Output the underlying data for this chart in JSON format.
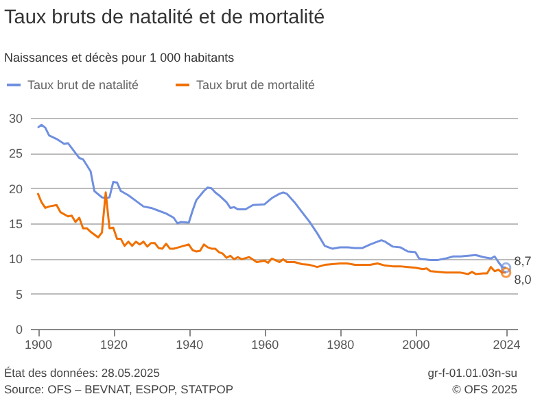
{
  "chart_data": {
    "type": "line",
    "title": "Taux bruts de natalité et de mortalité",
    "subtitle": "Naissances et décès pour 1 000 habitants",
    "xlim": [
      1898,
      2027
    ],
    "xticks": [
      1900,
      1920,
      1940,
      1960,
      1980,
      2000,
      2024
    ],
    "ylim": [
      0,
      30
    ],
    "yticks": [
      0,
      5,
      10,
      15,
      20,
      25,
      30
    ],
    "grid": "y",
    "legend": "top left",
    "line_style": "solid",
    "series": [
      {
        "name": "Taux brut de natalité",
        "color": "#6f8fdf",
        "x": [
          1900,
          1901,
          1902,
          1903,
          1905,
          1907,
          1908,
          1910,
          1911,
          1912,
          1914,
          1915,
          1917,
          1918,
          1919,
          1920,
          1921,
          1922,
          1924,
          1926,
          1928,
          1930,
          1932,
          1934,
          1936,
          1937,
          1938,
          1940,
          1941,
          1942,
          1944,
          1945,
          1946,
          1947,
          1948,
          1950,
          1951,
          1952,
          1953,
          1955,
          1957,
          1960,
          1962,
          1964,
          1965,
          1966,
          1968,
          1970,
          1972,
          1974,
          1976,
          1978,
          1980,
          1982,
          1984,
          1986,
          1988,
          1990,
          1991,
          1992,
          1994,
          1996,
          1998,
          2000,
          2001,
          2002,
          2004,
          2006,
          2008,
          2010,
          2012,
          2014,
          2016,
          2018,
          2020,
          2021,
          2022,
          2023,
          2024
        ],
        "values": [
          28.6,
          29.0,
          28.6,
          27.5,
          27.0,
          26.3,
          26.4,
          25.0,
          24.3,
          24.1,
          22.4,
          19.6,
          18.7,
          18.6,
          18.7,
          20.9,
          20.8,
          19.6,
          19.0,
          18.2,
          17.4,
          17.2,
          16.8,
          16.4,
          15.8,
          15.0,
          15.2,
          15.1,
          16.8,
          18.3,
          19.6,
          20.1,
          20.0,
          19.4,
          19.0,
          18.0,
          17.2,
          17.3,
          17.0,
          17.0,
          17.6,
          17.7,
          18.6,
          19.2,
          19.4,
          19.2,
          18.0,
          16.6,
          15.2,
          13.6,
          11.8,
          11.4,
          11.6,
          11.6,
          11.5,
          11.5,
          12.0,
          12.4,
          12.6,
          12.4,
          11.7,
          11.6,
          11.0,
          10.9,
          10.0,
          9.9,
          9.8,
          9.8,
          10.0,
          10.3,
          10.3,
          10.4,
          10.5,
          10.2,
          10.0,
          10.3,
          9.5,
          8.8,
          8.7
        ],
        "value_labels": [
          null,
          null,
          null,
          null,
          null,
          null,
          null,
          null,
          null,
          null,
          null,
          null,
          null,
          null,
          null,
          null,
          null,
          null,
          null,
          null,
          null,
          null,
          null,
          null,
          null,
          null,
          null,
          null,
          null,
          null,
          null,
          null,
          null,
          null,
          null,
          null,
          null,
          null,
          null,
          null,
          null,
          null,
          null,
          null,
          null,
          null,
          null,
          null,
          null,
          null,
          null,
          null,
          null,
          null,
          null,
          null,
          null,
          null,
          null,
          null,
          null,
          null,
          null,
          null,
          null,
          null,
          null,
          null,
          null,
          null,
          null,
          null,
          null,
          null,
          null,
          null,
          null,
          null,
          "8,7"
        ]
      },
      {
        "name": "Taux brut de mortalité",
        "color": "#f07000",
        "x": [
          1900,
          1901,
          1902,
          1903,
          1905,
          1906,
          1908,
          1909,
          1910,
          1911,
          1912,
          1913,
          1914,
          1916,
          1917,
          1918,
          1919,
          1920,
          1921,
          1922,
          1923,
          1924,
          1925,
          1926,
          1927,
          1928,
          1929,
          1930,
          1931,
          1932,
          1933,
          1934,
          1935,
          1936,
          1938,
          1940,
          1941,
          1942,
          1943,
          1944,
          1945,
          1946,
          1947,
          1948,
          1949,
          1950,
          1951,
          1952,
          1953,
          1954,
          1956,
          1958,
          1960,
          1961,
          1962,
          1964,
          1965,
          1966,
          1968,
          1970,
          1972,
          1974,
          1976,
          1978,
          1980,
          1982,
          1984,
          1986,
          1988,
          1990,
          1992,
          1994,
          1996,
          1998,
          2000,
          2002,
          2003,
          2004,
          2006,
          2008,
          2010,
          2012,
          2014,
          2015,
          2016,
          2018,
          2019,
          2020,
          2021,
          2022,
          2023,
          2024
        ],
        "values": [
          19.3,
          18.0,
          17.2,
          17.4,
          17.6,
          16.6,
          16.0,
          16.1,
          15.2,
          15.8,
          14.3,
          14.3,
          13.8,
          13.0,
          13.7,
          19.4,
          14.3,
          14.4,
          12.8,
          12.8,
          11.8,
          12.4,
          11.8,
          12.4,
          12.0,
          12.4,
          11.7,
          12.2,
          12.2,
          11.5,
          11.4,
          12.1,
          11.4,
          11.4,
          11.7,
          12.0,
          11.2,
          11.0,
          11.1,
          12.0,
          11.6,
          11.4,
          11.4,
          10.9,
          10.7,
          10.1,
          10.4,
          9.9,
          10.2,
          9.9,
          10.2,
          9.5,
          9.7,
          9.4,
          10.0,
          9.5,
          9.9,
          9.5,
          9.5,
          9.2,
          9.1,
          8.8,
          9.1,
          9.2,
          9.3,
          9.3,
          9.1,
          9.1,
          9.1,
          9.3,
          9.0,
          8.9,
          8.9,
          8.8,
          8.7,
          8.5,
          8.6,
          8.2,
          8.1,
          8.0,
          8.0,
          8.0,
          7.8,
          8.1,
          7.8,
          7.9,
          7.9,
          8.8,
          8.2,
          8.4,
          8.0,
          8.0
        ],
        "value_labels": [
          null,
          null,
          null,
          null,
          null,
          null,
          null,
          null,
          null,
          null,
          null,
          null,
          null,
          null,
          null,
          null,
          null,
          null,
          null,
          null,
          null,
          null,
          null,
          null,
          null,
          null,
          null,
          null,
          null,
          null,
          null,
          null,
          null,
          null,
          null,
          null,
          null,
          null,
          null,
          null,
          null,
          null,
          null,
          null,
          null,
          null,
          null,
          null,
          null,
          null,
          null,
          null,
          null,
          null,
          null,
          null,
          null,
          null,
          null,
          null,
          null,
          null,
          null,
          null,
          null,
          null,
          null,
          null,
          null,
          null,
          null,
          null,
          null,
          null,
          null,
          null,
          null,
          null,
          null,
          null,
          null,
          null,
          null,
          null,
          null,
          null,
          null,
          null,
          null,
          null,
          null,
          "8,0"
        ]
      }
    ],
    "annotations": [
      "État des données: 28.05.2025",
      "Source: OFS – BEVNAT, ESPOP, STATPOP",
      "gr-f-01.01.03n-su",
      "© OFS 2025"
    ]
  }
}
